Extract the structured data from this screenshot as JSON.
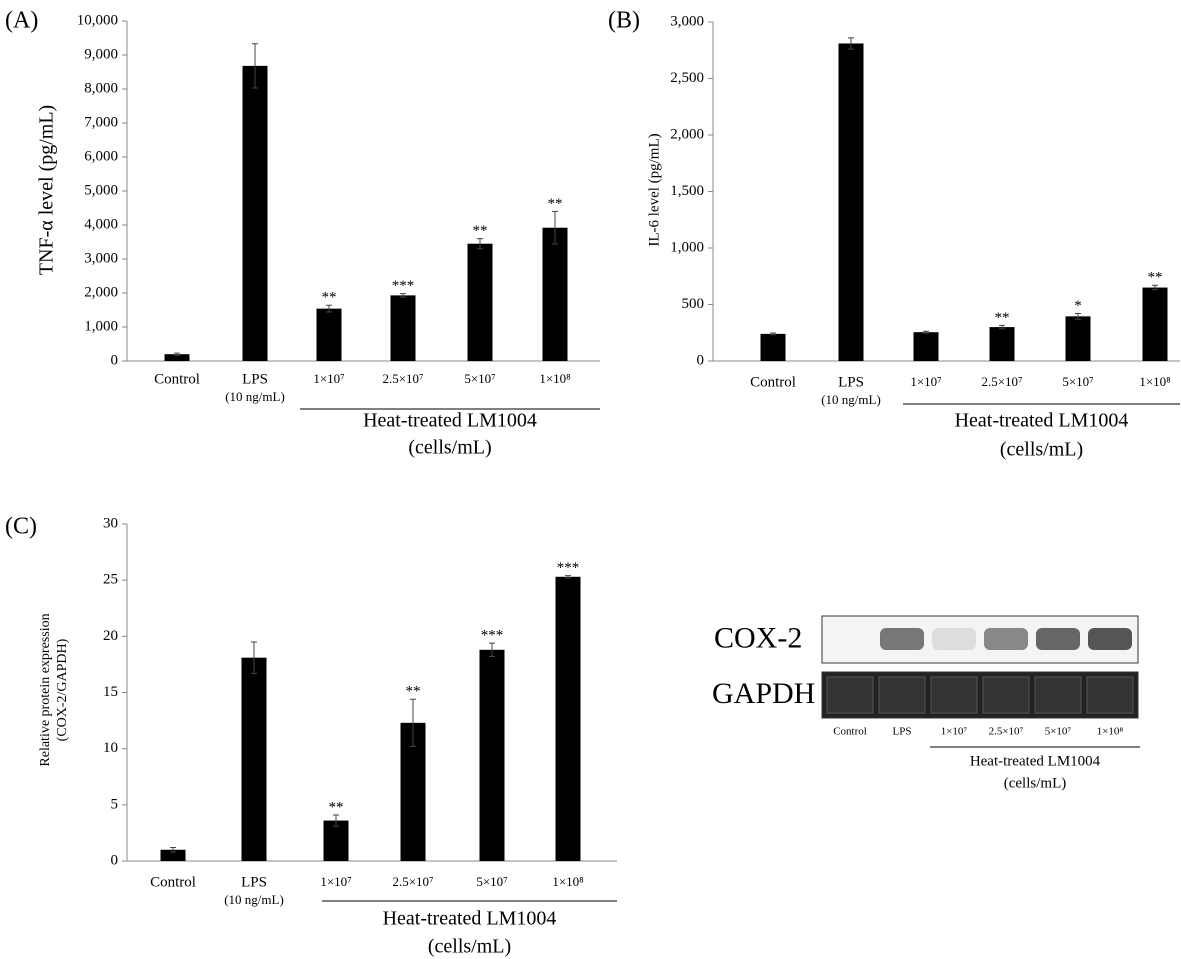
{
  "chart_data": [
    {
      "type": "bar",
      "panel": "(A)",
      "ylabel": [
        "TNF-α level (pg/mL)"
      ],
      "categories": [
        "Control",
        "LPS",
        "1×10⁷",
        "2.5×10⁷",
        "5×10⁷",
        "1×10⁸"
      ],
      "category_notes": [
        null,
        "(10 ng/mL)",
        null,
        null,
        null,
        null
      ],
      "group_label": [
        "Heat-treated LM1004",
        "(cells/mL)"
      ],
      "values": [
        200,
        8680,
        1540,
        1930,
        3450,
        3920
      ],
      "errors": [
        30,
        650,
        100,
        50,
        150,
        480
      ],
      "annotations": [
        null,
        null,
        "**",
        "***",
        "**",
        "**"
      ],
      "color": "#000000",
      "ylim": [
        0,
        10000
      ],
      "yticks": [
        0,
        {
          "value": 1000,
          "label": "1,000"
        },
        {
          "value": 2000,
          "label": "2,000"
        },
        {
          "value": 3000,
          "label": "3,000"
        },
        {
          "value": 4000,
          "label": "4,000"
        },
        {
          "value": 5000,
          "label": "5,000"
        },
        {
          "value": 6000,
          "label": "6,000"
        },
        {
          "value": 7000,
          "label": "7,000"
        },
        {
          "value": 8000,
          "label": "8,000"
        },
        {
          "value": 9000,
          "label": "9,000"
        },
        {
          "value": 10000,
          "label": "10,000"
        }
      ]
    },
    {
      "type": "bar",
      "panel": "(B)",
      "ylabel": [
        "IL-6 level (pg/mL)"
      ],
      "categories": [
        "Control",
        "LPS",
        "1×10⁷",
        "2.5×10⁷",
        "5×10⁷",
        "1×10⁸"
      ],
      "category_notes": [
        null,
        "(10 ng/mL)",
        null,
        null,
        null,
        null
      ],
      "group_label": [
        "Heat-treated LM1004",
        "(cells/mL)"
      ],
      "values": [
        240,
        2810,
        255,
        300,
        395,
        650
      ],
      "errors": [
        8,
        50,
        8,
        15,
        25,
        20
      ],
      "annotations": [
        null,
        null,
        null,
        "**",
        "*",
        "**"
      ],
      "color": "#000000",
      "ylim": [
        0,
        3000
      ],
      "yticks": [
        0,
        500,
        {
          "value": 1000,
          "label": "1,000"
        },
        {
          "value": 1500,
          "label": "1,500"
        },
        {
          "value": 2000,
          "label": "2,000"
        },
        {
          "value": 2500,
          "label": "2,500"
        },
        {
          "value": 3000,
          "label": "3,000"
        }
      ]
    },
    {
      "type": "bar",
      "panel": "(C)",
      "ylabel": [
        "Relative protein expression",
        "(COX-2/GAPDH)"
      ],
      "categories": [
        "Control",
        "LPS",
        "1×10⁷",
        "2.5×10⁷",
        "5×10⁷",
        "1×10⁸"
      ],
      "category_notes": [
        null,
        "(10 ng/mL)",
        null,
        null,
        null,
        null
      ],
      "group_label": [
        "Heat-treated LM1004",
        "(cells/mL)"
      ],
      "values": [
        1.0,
        18.1,
        3.6,
        12.3,
        18.8,
        25.3
      ],
      "errors": [
        0.2,
        1.4,
        0.5,
        2.1,
        0.6,
        0.1
      ],
      "annotations": [
        null,
        null,
        "**",
        "**",
        "***",
        "***"
      ],
      "color": "#000000",
      "ylim": [
        0,
        30
      ],
      "yticks": [
        0,
        5,
        10,
        15,
        20,
        25,
        30
      ]
    }
  ],
  "blot": {
    "rows": [
      "COX-2",
      "GAPDH"
    ],
    "lanes": [
      "Control",
      "LPS",
      "1×10⁷",
      "2.5×10⁷",
      "5×10⁷",
      "1×10⁸"
    ],
    "group_label": [
      "Heat-treated LM1004",
      "(cells/mL)"
    ]
  }
}
